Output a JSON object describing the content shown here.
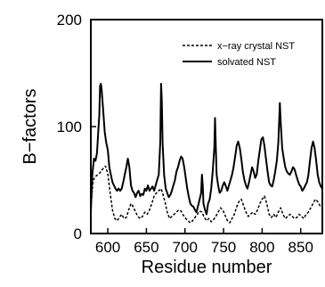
{
  "chart_data": {
    "type": "line",
    "title": "",
    "xlabel": "Residue number",
    "ylabel": "B−factors",
    "xlim": [
      578,
      878
    ],
    "ylim": [
      0,
      200
    ],
    "xticks": [
      600,
      650,
      700,
      750,
      800,
      850
    ],
    "yticks": [
      0,
      100,
      200
    ],
    "grid": false,
    "legend_position": "top-right",
    "series": [
      {
        "name": "x−ray crystal NST",
        "style": "dashed",
        "color": "#000000",
        "points": [
          [
            578,
            25
          ],
          [
            581,
            50
          ],
          [
            585,
            54
          ],
          [
            589,
            56
          ],
          [
            593,
            60
          ],
          [
            597,
            63
          ],
          [
            600,
            56
          ],
          [
            603,
            38
          ],
          [
            606,
            22
          ],
          [
            609,
            14
          ],
          [
            612,
            12
          ],
          [
            615,
            15
          ],
          [
            618,
            18
          ],
          [
            621,
            14
          ],
          [
            624,
            15
          ],
          [
            627,
            22
          ],
          [
            630,
            28
          ],
          [
            633,
            25
          ],
          [
            636,
            20
          ],
          [
            639,
            16
          ],
          [
            642,
            14
          ],
          [
            645,
            16
          ],
          [
            648,
            20
          ],
          [
            651,
            18
          ],
          [
            654,
            22
          ],
          [
            657,
            28
          ],
          [
            660,
            35
          ],
          [
            663,
            38
          ],
          [
            666,
            40
          ],
          [
            669,
            42
          ],
          [
            671,
            38
          ],
          [
            674,
            30
          ],
          [
            677,
            20
          ],
          [
            680,
            14
          ],
          [
            683,
            16
          ],
          [
            686,
            18
          ],
          [
            689,
            20
          ],
          [
            692,
            22
          ],
          [
            695,
            21
          ],
          [
            698,
            17
          ],
          [
            701,
            14
          ],
          [
            704,
            12
          ],
          [
            707,
            10
          ],
          [
            710,
            12
          ],
          [
            713,
            15
          ],
          [
            716,
            18
          ],
          [
            719,
            21
          ],
          [
            722,
            20
          ],
          [
            725,
            15
          ],
          [
            728,
            12
          ],
          [
            731,
            14
          ],
          [
            734,
            11
          ],
          [
            737,
            13
          ],
          [
            740,
            16
          ],
          [
            743,
            20
          ],
          [
            746,
            24
          ],
          [
            749,
            22
          ],
          [
            752,
            17
          ],
          [
            755,
            12
          ],
          [
            758,
            10
          ],
          [
            761,
            14
          ],
          [
            764,
            18
          ],
          [
            767,
            25
          ],
          [
            770,
            30
          ],
          [
            773,
            32
          ],
          [
            776,
            26
          ],
          [
            779,
            20
          ],
          [
            782,
            16
          ],
          [
            785,
            18
          ],
          [
            788,
            20
          ],
          [
            791,
            18
          ],
          [
            794,
            22
          ],
          [
            797,
            28
          ],
          [
            800,
            32
          ],
          [
            803,
            35
          ],
          [
            806,
            28
          ],
          [
            809,
            18
          ],
          [
            812,
            15
          ],
          [
            815,
            18
          ],
          [
            818,
            15
          ],
          [
            821,
            20
          ],
          [
            824,
            24
          ],
          [
            827,
            18
          ],
          [
            830,
            14
          ],
          [
            833,
            16
          ],
          [
            836,
            18
          ],
          [
            839,
            16
          ],
          [
            842,
            14
          ],
          [
            845,
            15
          ],
          [
            848,
            18
          ],
          [
            851,
            16
          ],
          [
            854,
            14
          ],
          [
            857,
            18
          ],
          [
            860,
            20
          ],
          [
            863,
            24
          ],
          [
            866,
            28
          ],
          [
            869,
            32
          ],
          [
            872,
            30
          ],
          [
            875,
            26
          ],
          [
            878,
            25
          ]
        ]
      },
      {
        "name": "solvated NST",
        "style": "solid",
        "color": "#000000",
        "points": [
          [
            578,
            20
          ],
          [
            580,
            55
          ],
          [
            582,
            70
          ],
          [
            584,
            68
          ],
          [
            586,
            75
          ],
          [
            588,
            100
          ],
          [
            589,
            110
          ],
          [
            590,
            138
          ],
          [
            591,
            140
          ],
          [
            592,
            135
          ],
          [
            594,
            115
          ],
          [
            596,
            95
          ],
          [
            598,
            85
          ],
          [
            600,
            78
          ],
          [
            602,
            62
          ],
          [
            604,
            55
          ],
          [
            606,
            48
          ],
          [
            608,
            45
          ],
          [
            610,
            42
          ],
          [
            612,
            40
          ],
          [
            614,
            42
          ],
          [
            616,
            40
          ],
          [
            618,
            42
          ],
          [
            620,
            48
          ],
          [
            622,
            55
          ],
          [
            624,
            62
          ],
          [
            626,
            70
          ],
          [
            628,
            62
          ],
          [
            630,
            45
          ],
          [
            632,
            40
          ],
          [
            634,
            38
          ],
          [
            636,
            34
          ],
          [
            638,
            38
          ],
          [
            640,
            40
          ],
          [
            642,
            35
          ],
          [
            644,
            37
          ],
          [
            646,
            36
          ],
          [
            648,
            42
          ],
          [
            650,
            40
          ],
          [
            652,
            45
          ],
          [
            654,
            40
          ],
          [
            656,
            42
          ],
          [
            658,
            44
          ],
          [
            660,
            40
          ],
          [
            662,
            45
          ],
          [
            664,
            50
          ],
          [
            666,
            55
          ],
          [
            668,
            85
          ],
          [
            669,
            140
          ],
          [
            670,
            125
          ],
          [
            671,
            85
          ],
          [
            673,
            55
          ],
          [
            675,
            42
          ],
          [
            677,
            38
          ],
          [
            679,
            34
          ],
          [
            681,
            36
          ],
          [
            683,
            40
          ],
          [
            685,
            45
          ],
          [
            687,
            50
          ],
          [
            689,
            58
          ],
          [
            691,
            62
          ],
          [
            693,
            68
          ],
          [
            695,
            72
          ],
          [
            697,
            70
          ],
          [
            699,
            62
          ],
          [
            701,
            52
          ],
          [
            703,
            42
          ],
          [
            705,
            34
          ],
          [
            707,
            28
          ],
          [
            709,
            26
          ],
          [
            711,
            25
          ],
          [
            713,
            22
          ],
          [
            715,
            20
          ],
          [
            717,
            26
          ],
          [
            719,
            32
          ],
          [
            721,
            38
          ],
          [
            722,
            55
          ],
          [
            723,
            45
          ],
          [
            724,
            28
          ],
          [
            726,
            22
          ],
          [
            728,
            18
          ],
          [
            730,
            28
          ],
          [
            732,
            32
          ],
          [
            734,
            42
          ],
          [
            736,
            58
          ],
          [
            738,
            80
          ],
          [
            739,
            108
          ],
          [
            740,
            80
          ],
          [
            741,
            55
          ],
          [
            743,
            45
          ],
          [
            745,
            38
          ],
          [
            747,
            40
          ],
          [
            749,
            45
          ],
          [
            751,
            48
          ],
          [
            753,
            44
          ],
          [
            755,
            40
          ],
          [
            757,
            45
          ],
          [
            759,
            50
          ],
          [
            761,
            55
          ],
          [
            763,
            62
          ],
          [
            765,
            72
          ],
          [
            767,
            82
          ],
          [
            769,
            86
          ],
          [
            771,
            80
          ],
          [
            773,
            70
          ],
          [
            775,
            58
          ],
          [
            777,
            50
          ],
          [
            779,
            45
          ],
          [
            781,
            42
          ],
          [
            783,
            48
          ],
          [
            785,
            55
          ],
          [
            787,
            62
          ],
          [
            789,
            58
          ],
          [
            791,
            52
          ],
          [
            793,
            55
          ],
          [
            795,
            68
          ],
          [
            797,
            78
          ],
          [
            799,
            88
          ],
          [
            801,
            90
          ],
          [
            803,
            82
          ],
          [
            805,
            70
          ],
          [
            807,
            58
          ],
          [
            809,
            48
          ],
          [
            811,
            45
          ],
          [
            813,
            44
          ],
          [
            815,
            50
          ],
          [
            817,
            58
          ],
          [
            819,
            68
          ],
          [
            821,
            85
          ],
          [
            823,
            122
          ],
          [
            824,
            105
          ],
          [
            826,
            80
          ],
          [
            828,
            70
          ],
          [
            830,
            62
          ],
          [
            832,
            58
          ],
          [
            834,
            56
          ],
          [
            836,
            55
          ],
          [
            838,
            58
          ],
          [
            840,
            62
          ],
          [
            842,
            60
          ],
          [
            844,
            55
          ],
          [
            846,
            50
          ],
          [
            848,
            46
          ],
          [
            850,
            44
          ],
          [
            852,
            40
          ],
          [
            854,
            42
          ],
          [
            856,
            45
          ],
          [
            858,
            48
          ],
          [
            860,
            55
          ],
          [
            862,
            68
          ],
          [
            864,
            80
          ],
          [
            866,
            86
          ],
          [
            868,
            80
          ],
          [
            870,
            68
          ],
          [
            872,
            55
          ],
          [
            874,
            48
          ],
          [
            876,
            44
          ],
          [
            878,
            42
          ]
        ]
      }
    ]
  }
}
